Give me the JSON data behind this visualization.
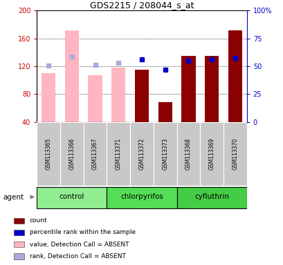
{
  "title": "GDS2215 / 208044_s_at",
  "samples": [
    "GSM113365",
    "GSM113366",
    "GSM113367",
    "GSM113371",
    "GSM113372",
    "GSM113373",
    "GSM113368",
    "GSM113369",
    "GSM113370"
  ],
  "bar_width": 0.6,
  "ylim_left": [
    40,
    200
  ],
  "ylim_right": [
    0,
    100
  ],
  "yticks_left": [
    40,
    80,
    120,
    160,
    200
  ],
  "yticks_right": [
    0,
    25,
    50,
    75,
    100
  ],
  "ytick_labels_right": [
    "0",
    "25",
    "50",
    "75",
    "100%"
  ],
  "bars": {
    "GSM113365": {
      "value_absent": 110,
      "rank_absent": 121
    },
    "GSM113366": {
      "value_absent": 172,
      "rank_absent": 134
    },
    "GSM113367": {
      "value_absent": 107,
      "rank_absent": 122
    },
    "GSM113371": {
      "value_absent": 118,
      "rank_absent": 125
    },
    "GSM113372": {
      "count": 115,
      "rank_present": 130
    },
    "GSM113373": {
      "count": 68,
      "rank_present": 115
    },
    "GSM113368": {
      "count": 135,
      "rank_present": 128
    },
    "GSM113369": {
      "count": 135,
      "rank_present": 130
    },
    "GSM113370": {
      "count": 172,
      "rank_present": 132
    }
  },
  "absent_bar_color": "#FFB6C1",
  "present_bar_color": "#8B0000",
  "absent_rank_dot_color": "#AAAADD",
  "present_rank_dot_color": "#0000CC",
  "left_axis_color": "#CC0000",
  "right_axis_color": "#0000CC",
  "sample_bg_color": "#C8C8C8",
  "group_defs": [
    {
      "label": "control",
      "start": 0,
      "end": 2,
      "color": "#90EE90"
    },
    {
      "label": "chlorpyrifos",
      "start": 3,
      "end": 5,
      "color": "#55DD55"
    },
    {
      "label": "cyfluthrin",
      "start": 6,
      "end": 8,
      "color": "#44CC44"
    }
  ],
  "legend_items": [
    {
      "color": "#8B0000",
      "label": "count"
    },
    {
      "color": "#0000CC",
      "label": "percentile rank within the sample"
    },
    {
      "color": "#FFB6C1",
      "label": "value, Detection Call = ABSENT"
    },
    {
      "color": "#AAAADD",
      "label": "rank, Detection Call = ABSENT"
    }
  ]
}
